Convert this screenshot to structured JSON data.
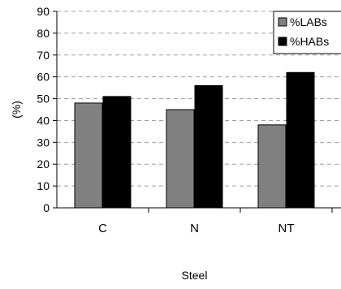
{
  "chart_data": {
    "type": "bar",
    "categories": [
      "C",
      "N",
      "NT"
    ],
    "series": [
      {
        "name": "%LABs",
        "values": [
          48,
          45,
          38
        ],
        "color": "#808080"
      },
      {
        "name": "%HABs",
        "values": [
          51,
          56,
          62
        ],
        "color": "#000000"
      }
    ],
    "xlabel": "Steel",
    "ylabel": "(%)",
    "ylim": [
      0,
      90
    ],
    "yticks": [
      0,
      10,
      20,
      30,
      40,
      50,
      60,
      70,
      80,
      90
    ],
    "grid": true,
    "legend_position": "top-right"
  }
}
